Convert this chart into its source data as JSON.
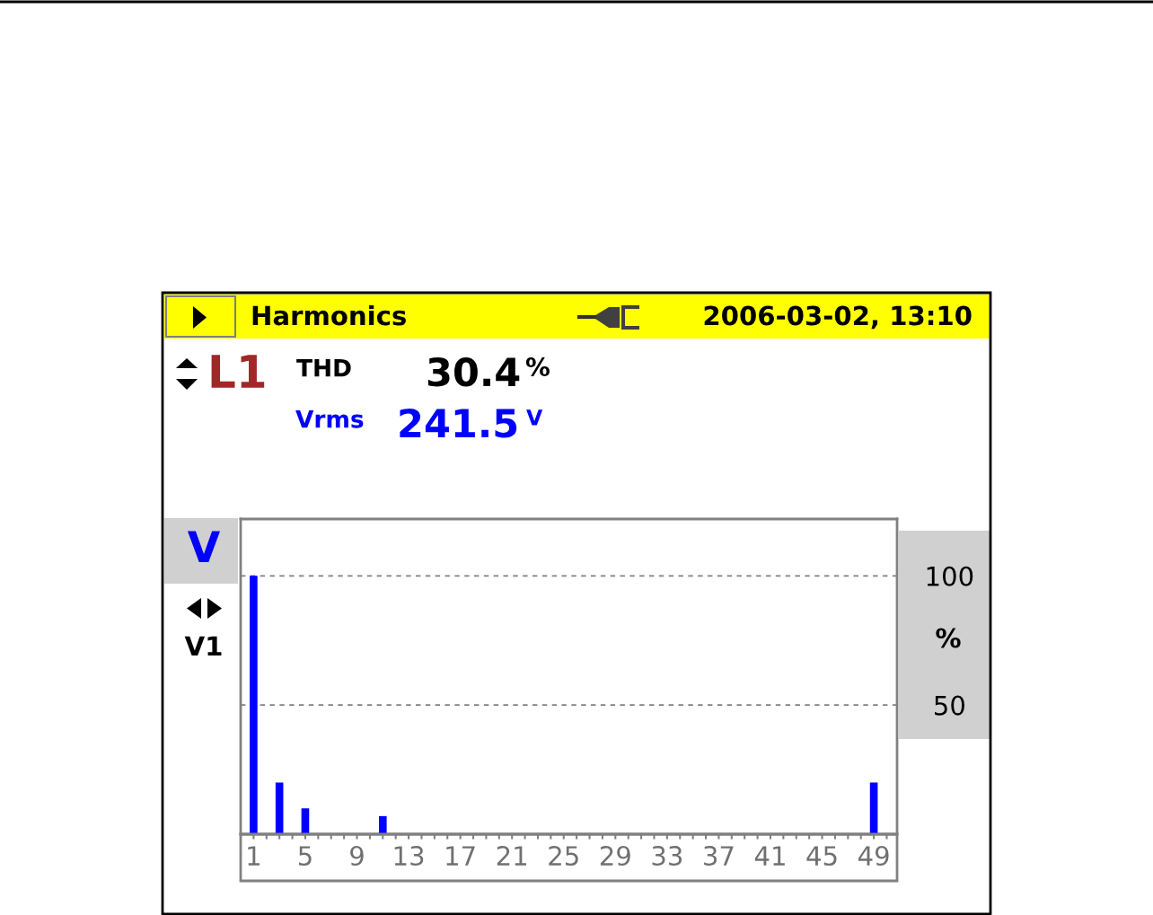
{
  "chart_data": {
    "type": "bar",
    "title": "Harmonics",
    "ylabel": "%",
    "x": [
      1,
      3,
      5,
      11,
      49
    ],
    "values": [
      100,
      20,
      10,
      7,
      20
    ],
    "color": "#0000ff",
    "xlim": [
      0,
      50.8
    ],
    "xticks": [
      1,
      {
        "value": 2,
        "label": null
      },
      {
        "value": 3,
        "label": null
      },
      {
        "value": 4,
        "label": null
      },
      5,
      {
        "value": 6,
        "label": null
      },
      {
        "value": 7,
        "label": null
      },
      {
        "value": 8,
        "label": null
      },
      9,
      {
        "value": 10,
        "label": null
      },
      {
        "value": 11,
        "label": null
      },
      {
        "value": 12,
        "label": null
      },
      13,
      {
        "value": 14,
        "label": null
      },
      {
        "value": 15,
        "label": null
      },
      {
        "value": 16,
        "label": null
      },
      17,
      {
        "value": 18,
        "label": null
      },
      {
        "value": 19,
        "label": null
      },
      {
        "value": 20,
        "label": null
      },
      21,
      {
        "value": 22,
        "label": null
      },
      {
        "value": 23,
        "label": null
      },
      {
        "value": 24,
        "label": null
      },
      25,
      {
        "value": 26,
        "label": null
      },
      {
        "value": 27,
        "label": null
      },
      {
        "value": 28,
        "label": null
      },
      29,
      {
        "value": 30,
        "label": null
      },
      {
        "value": 31,
        "label": null
      },
      {
        "value": 32,
        "label": null
      },
      33,
      {
        "value": 34,
        "label": null
      },
      {
        "value": 35,
        "label": null
      },
      {
        "value": 36,
        "label": null
      },
      37,
      {
        "value": 38,
        "label": null
      },
      {
        "value": 39,
        "label": null
      },
      {
        "value": 40,
        "label": null
      },
      41,
      {
        "value": 42,
        "label": null
      },
      {
        "value": 43,
        "label": null
      },
      {
        "value": 44,
        "label": null
      },
      45,
      {
        "value": 46,
        "label": null
      },
      {
        "value": 47,
        "label": null
      },
      {
        "value": 48,
        "label": null
      },
      49,
      {
        "value": 50,
        "label": null
      }
    ],
    "ylim": [
      0,
      122
    ],
    "yticks": [
      50,
      100
    ],
    "grid": "y",
    "annotations": [
      "2006-03-02, 13:10",
      "L1",
      "THD",
      "30.4",
      "%",
      "Vrms",
      "241.5",
      "V",
      "V",
      "V1"
    ]
  }
}
